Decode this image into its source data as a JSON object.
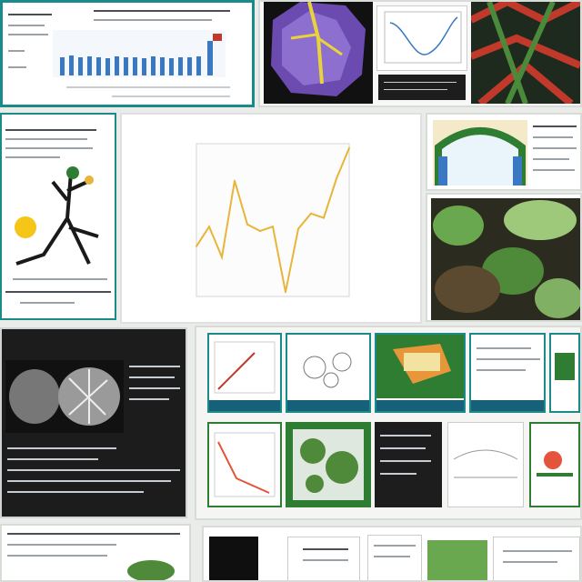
{
  "palette": {
    "accent_teal": "#1b8a8a",
    "chart_bar_blue": "#3a78c2",
    "chart_line_gold": "#e8b53a",
    "foliage_green": "#2f7d32",
    "dark_panel": "#1c1c1c"
  },
  "icons": [
    "bar-chart-thumbnail",
    "leaf-mosaic-thumbnail",
    "line-plot-thumbnail",
    "tree-illustration-thumbnail"
  ],
  "chart_data": {
    "type": "line",
    "x": [
      0,
      1,
      2,
      3,
      4,
      5,
      6,
      7,
      8,
      9,
      10,
      11,
      12
    ],
    "values": [
      0.48,
      0.57,
      0.43,
      0.78,
      0.58,
      0.55,
      0.57,
      0.27,
      0.56,
      0.63,
      0.61,
      0.79,
      0.93
    ],
    "ylim": [
      0.25,
      0.95
    ],
    "xlim": [
      0,
      12
    ],
    "grid": false,
    "line_color": "#e8b53a"
  }
}
